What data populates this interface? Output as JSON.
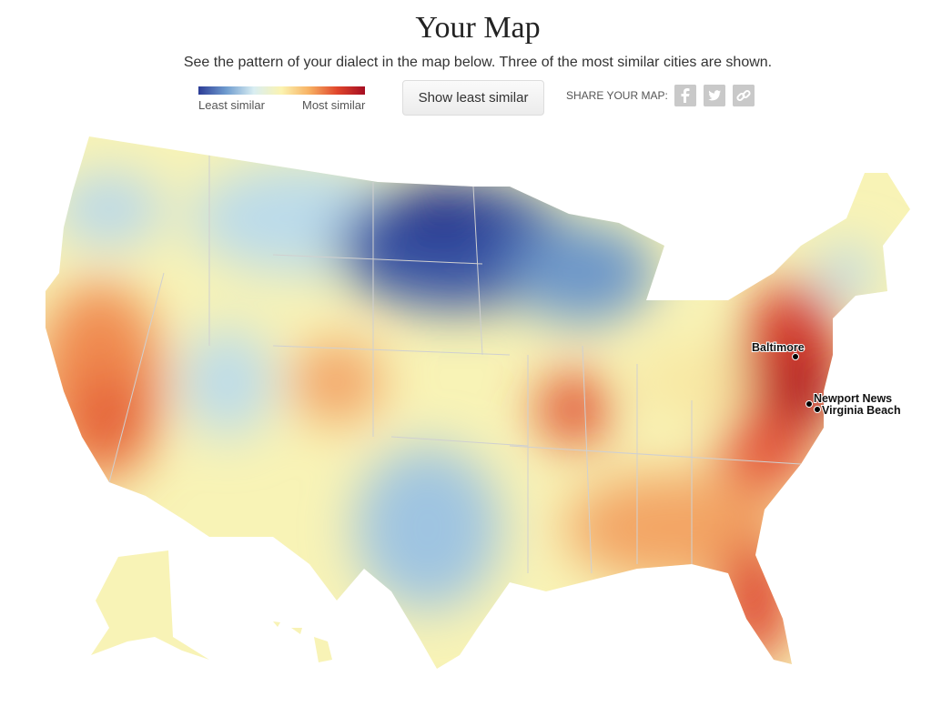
{
  "header": {
    "title": "Your Map",
    "subtitle": "See the pattern of your dialect in the map below. Three of the most similar cities are shown."
  },
  "legend": {
    "low": "Least similar",
    "high": "Most similar"
  },
  "button": {
    "label": "Show least similar"
  },
  "share": {
    "label": "SHARE YOUR MAP:"
  },
  "cities": [
    {
      "label": "Baltimore"
    },
    {
      "label": "Newport News"
    },
    {
      "label": "Virginia Beach"
    }
  ]
}
